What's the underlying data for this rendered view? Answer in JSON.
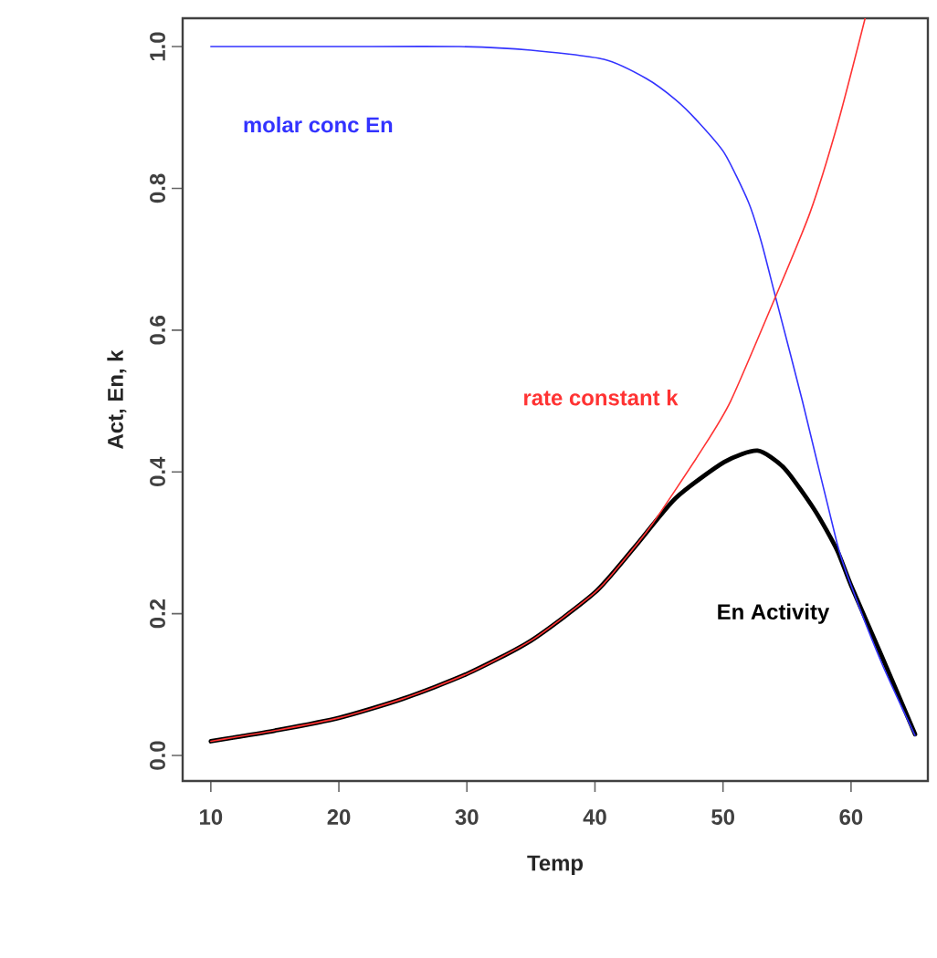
{
  "chart_data": {
    "type": "line",
    "xlabel": "Temp",
    "ylabel": "Act, En, k",
    "xlim": [
      7.8,
      66
    ],
    "ylim": [
      -0.036,
      1.04
    ],
    "xticks": [
      10,
      20,
      30,
      40,
      50,
      60
    ],
    "yticks": [
      {
        "value": 0,
        "label": "0.0"
      },
      {
        "value": 0.2,
        "label": "0.2"
      },
      {
        "value": 0.4,
        "label": "0.4"
      },
      {
        "value": 0.6,
        "label": "0.6"
      },
      {
        "value": 0.8,
        "label": "0.8"
      },
      {
        "value": 1,
        "label": "1.0"
      }
    ],
    "grid": false,
    "legend": false,
    "marker": "none",
    "line_style": "solid",
    "series": [
      {
        "name": "molar conc En",
        "color": "#3333ff",
        "x": [
          10,
          20,
          29.4,
          35,
          40.7,
          44,
          46.3,
          48,
          50.1,
          52,
          53,
          54.1,
          56.2,
          58.9,
          60,
          62.4,
          65
        ],
        "values": [
          1.0,
          1.0,
          1.0,
          0.995,
          0.982,
          0.955,
          0.925,
          0.895,
          0.85,
          0.78,
          0.724,
          0.647,
          0.5,
          0.3,
          0.24,
          0.13,
          0.028
        ]
      },
      {
        "name": "rate constant k",
        "color": "#ff3333",
        "x": [
          10,
          12,
          15,
          20,
          25,
          30,
          35,
          40,
          42,
          44.5,
          48.3,
          50.6,
          54.1,
          56.8,
          59,
          61.1
        ],
        "values": [
          0.02,
          0.026,
          0.035,
          0.053,
          0.08,
          0.115,
          0.162,
          0.23,
          0.27,
          0.327,
          0.43,
          0.5,
          0.647,
          0.766,
          0.894,
          1.04
        ]
      },
      {
        "name": "En Activity",
        "color": "#000000",
        "x": [
          10,
          12,
          15,
          20,
          25,
          30,
          35,
          40,
          43.1,
          46.3,
          50.1,
          52.7,
          54.8,
          57.2,
          58.9,
          60,
          62.4,
          65
        ],
        "values": [
          0.02,
          0.026,
          0.035,
          0.053,
          0.08,
          0.115,
          0.162,
          0.23,
          0.294,
          0.363,
          0.414,
          0.43,
          0.405,
          0.345,
          0.29,
          0.24,
          0.14,
          0.03
        ]
      }
    ]
  }
}
